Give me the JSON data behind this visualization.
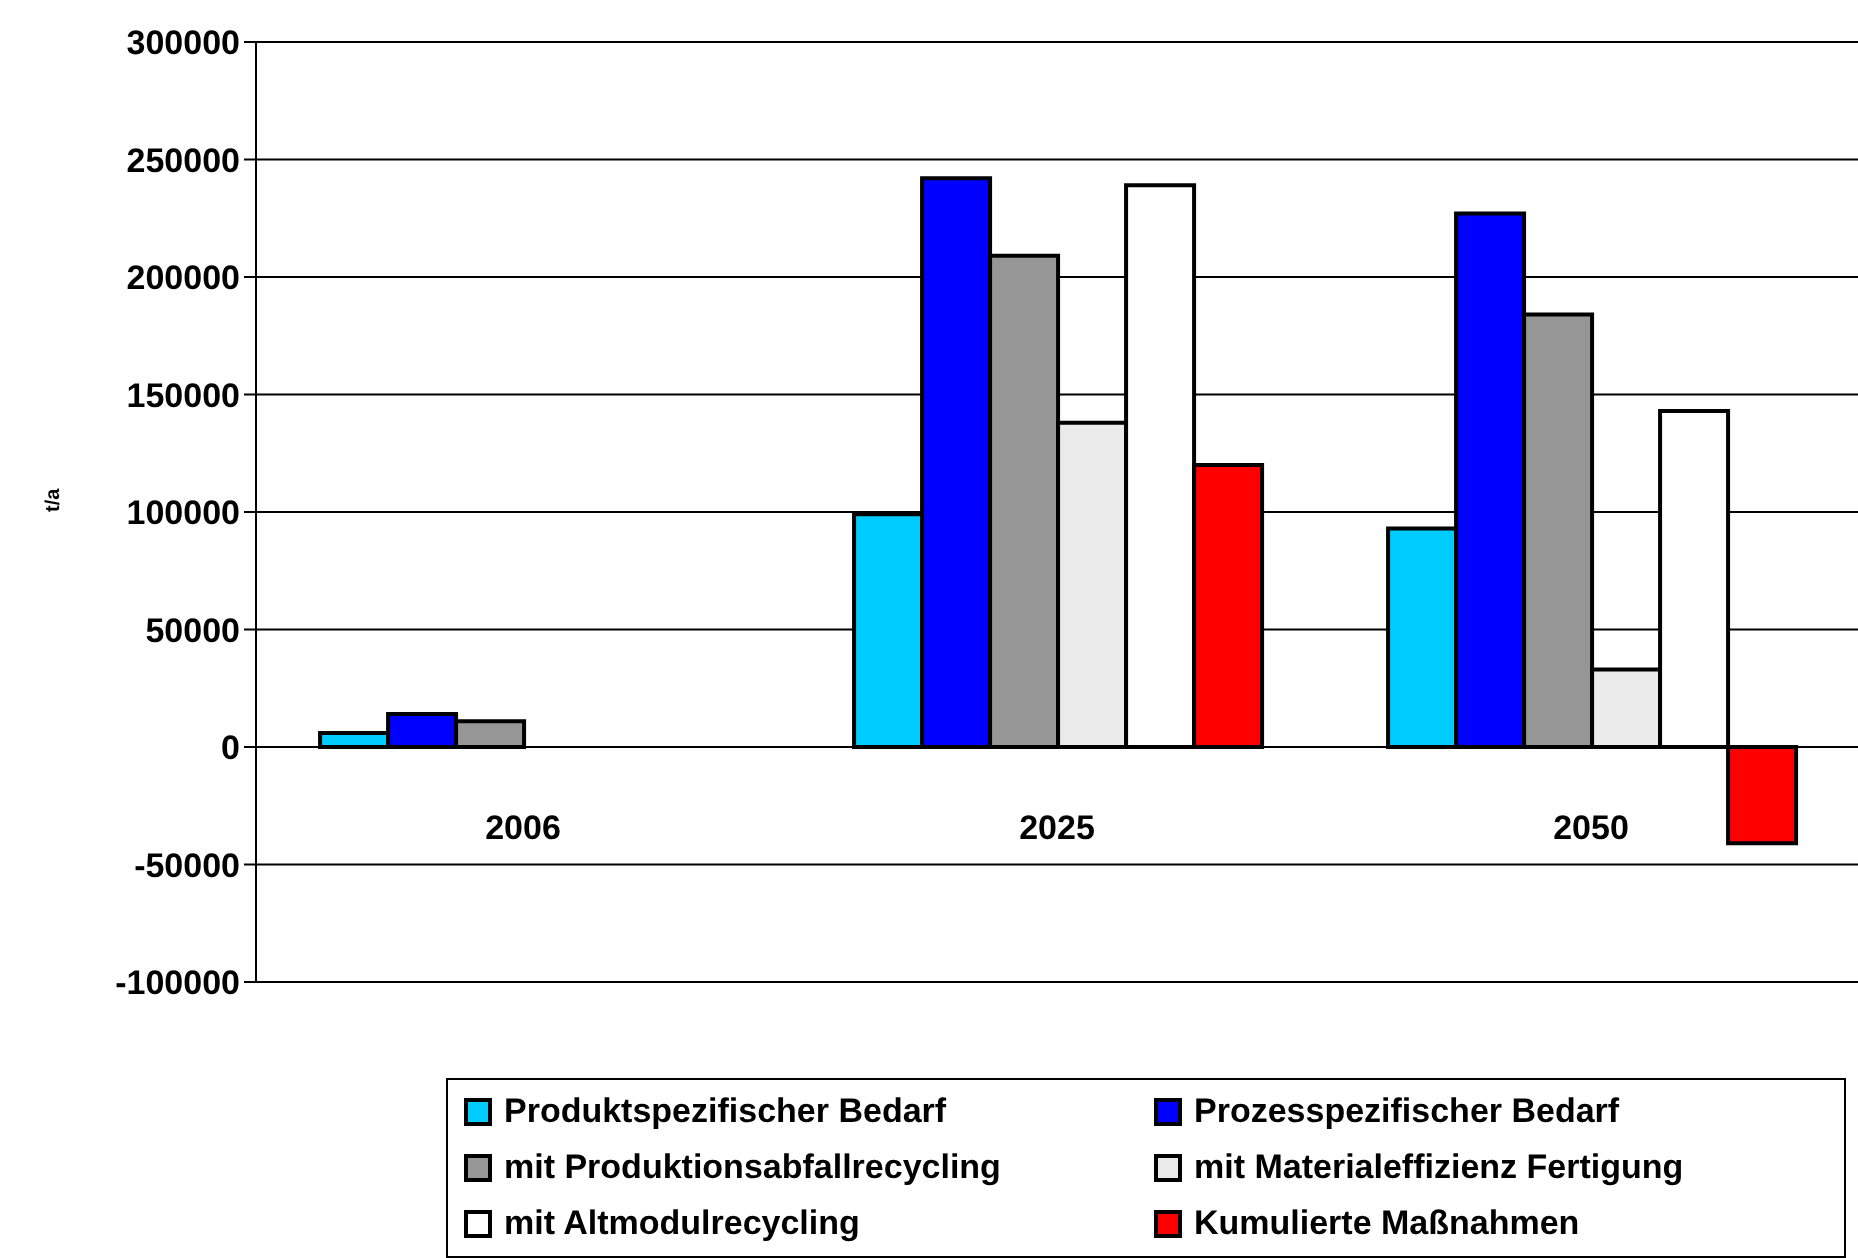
{
  "chart_data": {
    "type": "bar",
    "ylabel": "t/a",
    "categories": [
      "2006",
      "2025",
      "2050"
    ],
    "series": [
      {
        "name": "Produktspezifischer Bedarf",
        "color": "#00ccff",
        "values": [
          6000,
          99000,
          93000
        ]
      },
      {
        "name": "Prozesspezifischer Bedarf",
        "color": "#0000ff",
        "values": [
          14000,
          242000,
          227000
        ]
      },
      {
        "name": "mit Produktionsabfallrecycling",
        "color": "#969696",
        "values": [
          11000,
          209000,
          184000
        ]
      },
      {
        "name": "mit Materialeffizienz Fertigung",
        "color": "#eaeaea",
        "values": [
          null,
          138000,
          33000
        ]
      },
      {
        "name": "mit Altmodulrecycling",
        "color": "#ffffff",
        "values": [
          null,
          239000,
          143000
        ]
      },
      {
        "name": "Kumulierte Maßnahmen",
        "color": "#ff0000",
        "values": [
          null,
          120000,
          -41000
        ]
      }
    ],
    "ylim": [
      -100000,
      300000
    ],
    "yticks": [
      -100000,
      -50000,
      0,
      50000,
      100000,
      150000,
      200000,
      250000,
      300000
    ],
    "grid": "y",
    "legend": "bottom"
  }
}
